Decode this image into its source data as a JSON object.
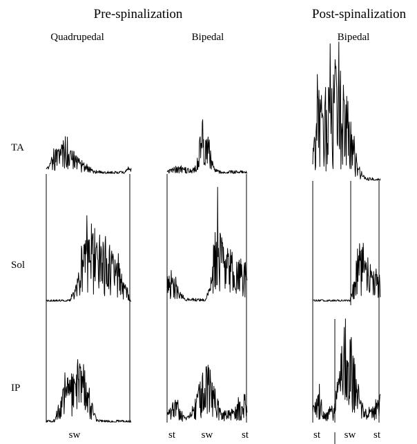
{
  "headers": {
    "pre": "Pre-spinalization",
    "post": "Post-spinalization"
  },
  "columns": [
    {
      "id": "pre-quadrupedal",
      "label": "Quadrupedal",
      "phase_labels": [
        "sw"
      ]
    },
    {
      "id": "pre-bipedal",
      "label": "Bipedal",
      "phase_labels": [
        "st",
        "sw",
        "st"
      ]
    },
    {
      "id": "post-bipedal",
      "label": "Bipedal",
      "phase_labels": [
        "st",
        "sw",
        "st"
      ]
    }
  ],
  "rows": [
    {
      "id": "ta",
      "label": "TA"
    },
    {
      "id": "sol",
      "label": "Sol"
    },
    {
      "id": "ip",
      "label": "IP"
    }
  ]
}
